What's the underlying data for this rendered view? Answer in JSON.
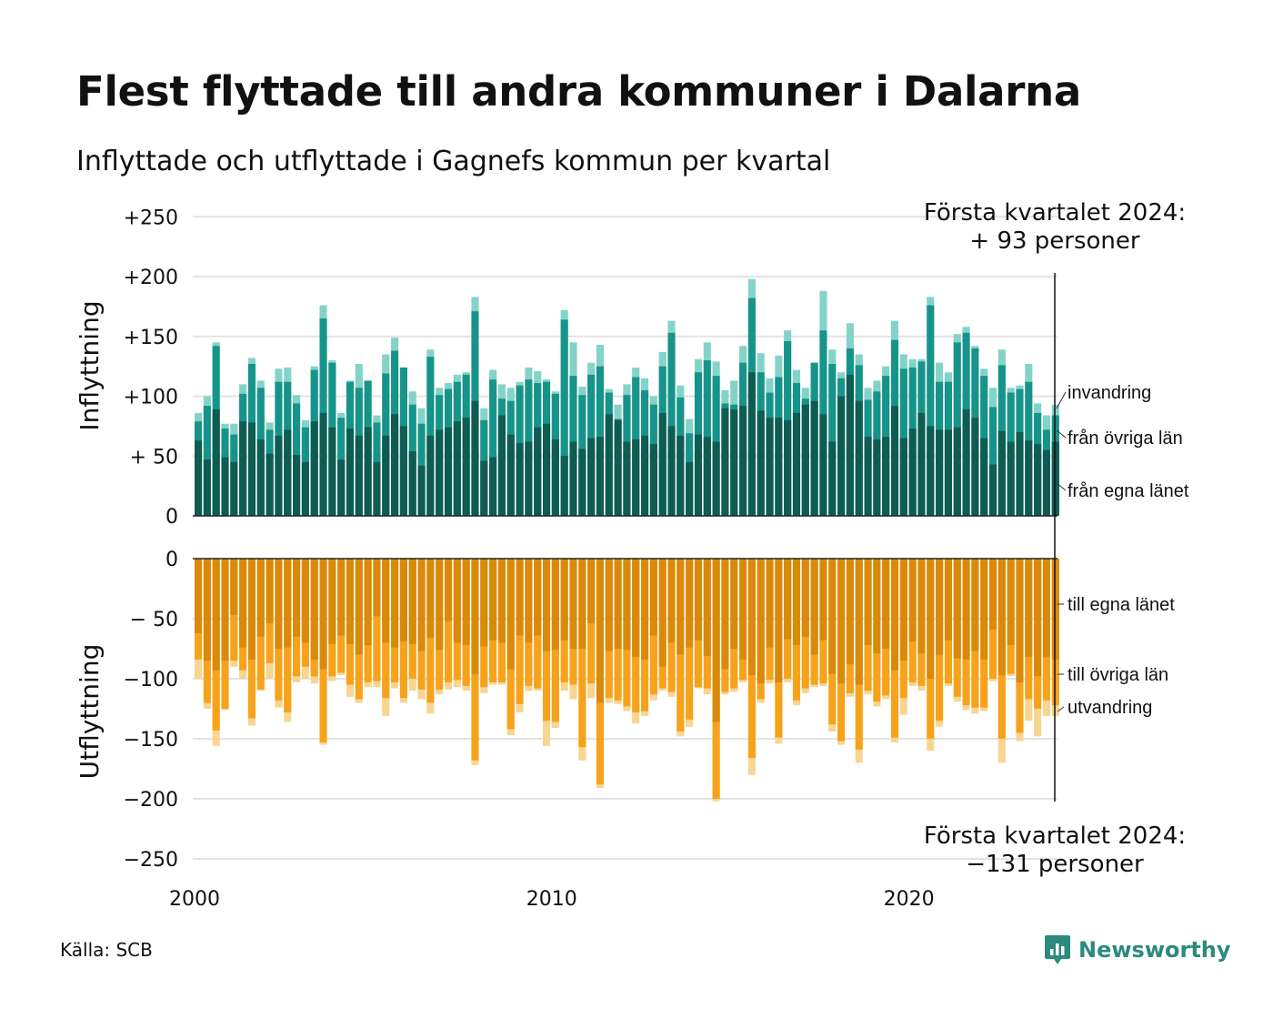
{
  "title": "Flest flyttade till andra kommuner i Dalarna",
  "subtitle": "Inflyttade och utflyttade i Gagnefs kommun per kvartal",
  "source": "Källa: SCB",
  "brand": "Newsworthy",
  "colors": {
    "in_own": "#0e5c52",
    "in_other": "#17948a",
    "in_abroad": "#84d3c8",
    "out_own": "#d98a0b",
    "out_other": "#f7a21b",
    "out_abroad": "#f8d591",
    "grid": "#e3e3e3",
    "brand": "#2c8a7e"
  },
  "chart_data": {
    "type": "bar",
    "x_start": "2000Q1",
    "x_end": "2024Q1",
    "x_ticks": [
      "2000",
      "2010",
      "2020"
    ],
    "top_ylabel": "Inflyttning",
    "bottom_ylabel": "Utflyttning",
    "top_ticks": [
      "+250",
      "+200",
      "+150",
      "+100",
      "+ 50",
      "0"
    ],
    "bottom_ticks": [
      "0",
      "− 50",
      "−100",
      "−150",
      "−200",
      "−250"
    ],
    "top_ylim": [
      0,
      250
    ],
    "bottom_ylim": [
      -250,
      0
    ],
    "grid": true,
    "annotation_top": [
      "Första kvartalet 2024:",
      "+ 93 personer"
    ],
    "annotation_bottom": [
      "Första kvartalet 2024:",
      "−131 personer"
    ],
    "in_labels": [
      "invandring",
      "från övriga län",
      "från egna länet"
    ],
    "out_labels": [
      "till egna länet",
      "till övriga län",
      "utvandring"
    ],
    "inflyttning": {
      "series_order": [
        "från egna länet",
        "från övriga län",
        "invandring"
      ],
      "totals": [
        86,
        100,
        145,
        77,
        77,
        110,
        132,
        113,
        78,
        123,
        124,
        101,
        80,
        125,
        176,
        130,
        86,
        113,
        127,
        113,
        84,
        135,
        149,
        124,
        104,
        90,
        139,
        107,
        111,
        118,
        120,
        183,
        90,
        122,
        110,
        107,
        112,
        124,
        121,
        114,
        104,
        172,
        145,
        108,
        128,
        143,
        106,
        93,
        110,
        124,
        115,
        100,
        137,
        163,
        109,
        81,
        131,
        145,
        129,
        105,
        113,
        142,
        198,
        136,
        115,
        134,
        155,
        122,
        107,
        128,
        188,
        139,
        120,
        161,
        135,
        107,
        113,
        125,
        163,
        135,
        131,
        131,
        183,
        128,
        120,
        152,
        158,
        142,
        123,
        107,
        139,
        107,
        109,
        127,
        94,
        84,
        93
      ],
      "own": [
        63,
        47,
        89,
        49,
        45,
        79,
        78,
        64,
        52,
        67,
        72,
        51,
        45,
        79,
        86,
        74,
        47,
        73,
        67,
        74,
        45,
        67,
        85,
        75,
        54,
        42,
        67,
        72,
        74,
        79,
        82,
        96,
        46,
        49,
        84,
        68,
        61,
        62,
        74,
        77,
        64,
        50,
        62,
        56,
        65,
        66,
        85,
        80,
        62,
        64,
        67,
        60,
        86,
        75,
        67,
        45,
        68,
        66,
        62,
        90,
        89,
        92,
        120,
        88,
        82,
        82,
        80,
        86,
        93,
        96,
        85,
        62,
        100,
        118,
        96,
        66,
        64,
        66,
        92,
        65,
        73,
        86,
        75,
        72,
        72,
        74,
        89,
        82,
        65,
        43,
        71,
        62,
        70,
        63,
        60,
        55,
        62
      ],
      "other": [
        79,
        92,
        142,
        73,
        68,
        102,
        127,
        107,
        72,
        112,
        112,
        94,
        74,
        122,
        165,
        128,
        82,
        112,
        107,
        113,
        78,
        119,
        138,
        124,
        93,
        77,
        133,
        101,
        106,
        112,
        118,
        171,
        80,
        114,
        98,
        96,
        109,
        114,
        111,
        112,
        102,
        164,
        117,
        101,
        118,
        125,
        103,
        81,
        101,
        116,
        105,
        93,
        125,
        153,
        99,
        69,
        120,
        130,
        117,
        94,
        93,
        128,
        182,
        120,
        103,
        116,
        146,
        111,
        98,
        128,
        155,
        127,
        115,
        140,
        126,
        97,
        104,
        117,
        147,
        123,
        124,
        129,
        176,
        112,
        112,
        145,
        153,
        140,
        117,
        91,
        126,
        103,
        106,
        112,
        86,
        72,
        84
      ]
    },
    "utflyttning": {
      "series_order": [
        "till egna länet",
        "till övriga län",
        "utvandring"
      ],
      "totals": [
        -100,
        -125,
        -156,
        -126,
        -90,
        -100,
        -139,
        -110,
        -100,
        -124,
        -136,
        -103,
        -100,
        -104,
        -155,
        -102,
        -97,
        -115,
        -120,
        -107,
        -107,
        -131,
        -108,
        -120,
        -110,
        -117,
        -129,
        -113,
        -109,
        -107,
        -110,
        -172,
        -112,
        -105,
        -105,
        -147,
        -128,
        -110,
        -110,
        -156,
        -141,
        -110,
        -117,
        -168,
        -116,
        -191,
        -120,
        -121,
        -127,
        -137,
        -131,
        -118,
        -110,
        -115,
        -148,
        -140,
        -108,
        -113,
        -202,
        -113,
        -111,
        -103,
        -180,
        -120,
        -104,
        -154,
        -103,
        -122,
        -112,
        -107,
        -106,
        -144,
        -155,
        -115,
        -170,
        -113,
        -123,
        -117,
        -153,
        -130,
        -106,
        -110,
        -160,
        -140,
        -106,
        -119,
        -126,
        -129,
        -127,
        -102,
        -170,
        -98,
        -152,
        -135,
        -148,
        -131,
        -131
      ],
      "own": [
        -62,
        -85,
        -93,
        -85,
        -47,
        -74,
        -84,
        -65,
        -54,
        -75,
        -74,
        -65,
        -70,
        -84,
        -92,
        -71,
        -64,
        -71,
        -80,
        -72,
        -48,
        -70,
        -74,
        -69,
        -71,
        -77,
        -66,
        -76,
        -52,
        -70,
        -72,
        -96,
        -73,
        -68,
        -70,
        -92,
        -64,
        -70,
        -64,
        -77,
        -76,
        -68,
        -75,
        -75,
        -54,
        -120,
        -77,
        -75,
        -76,
        -82,
        -84,
        -64,
        -90,
        -70,
        -80,
        -74,
        -68,
        -81,
        -136,
        -92,
        -75,
        -84,
        -97,
        -104,
        -74,
        -103,
        -67,
        -72,
        -65,
        -80,
        -68,
        -96,
        -104,
        -88,
        -105,
        -72,
        -79,
        -75,
        -93,
        -85,
        -69,
        -79,
        -100,
        -80,
        -68,
        -83,
        -84,
        -77,
        -84,
        -59,
        -97,
        -72,
        -103,
        -82,
        -98,
        -82,
        -84
      ],
      "other": [
        -84,
        -120,
        -143,
        -125,
        -85,
        -93,
        -133,
        -109,
        -87,
        -118,
        -128,
        -98,
        -90,
        -98,
        -153,
        -98,
        -95,
        -105,
        -117,
        -103,
        -102,
        -116,
        -103,
        -116,
        -100,
        -109,
        -120,
        -109,
        -103,
        -101,
        -106,
        -168,
        -107,
        -103,
        -103,
        -142,
        -121,
        -106,
        -108,
        -135,
        -136,
        -103,
        -105,
        -157,
        -104,
        -188,
        -116,
        -118,
        -123,
        -128,
        -127,
        -113,
        -108,
        -111,
        -144,
        -134,
        -107,
        -108,
        -200,
        -111,
        -108,
        -101,
        -166,
        -117,
        -101,
        -149,
        -100,
        -118,
        -108,
        -105,
        -104,
        -138,
        -152,
        -112,
        -159,
        -110,
        -119,
        -114,
        -149,
        -116,
        -103,
        -106,
        -150,
        -135,
        -104,
        -115,
        -122,
        -124,
        -124,
        -100,
        -150,
        -96,
        -145,
        -117,
        -125,
        -118,
        -122
      ]
    }
  }
}
